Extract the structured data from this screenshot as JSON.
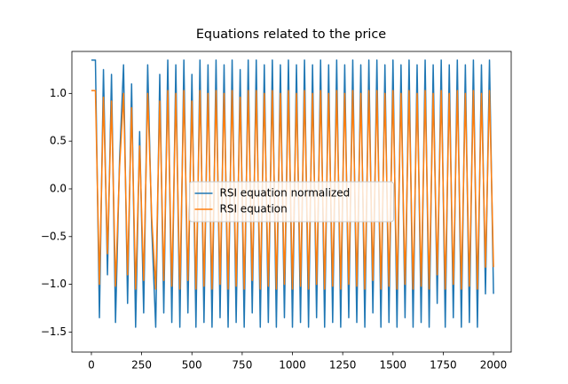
{
  "chart_data": {
    "type": "line",
    "title": "Equations related to the price",
    "x": [
      0,
      20,
      40,
      60,
      80,
      100,
      120,
      140,
      160,
      180,
      200,
      220,
      240,
      260,
      280,
      300,
      320,
      340,
      360,
      380,
      400,
      420,
      440,
      460,
      480,
      500,
      520,
      540,
      560,
      580,
      600,
      620,
      640,
      660,
      680,
      700,
      720,
      740,
      760,
      780,
      800,
      820,
      840,
      860,
      880,
      900,
      920,
      940,
      960,
      980,
      1000,
      1020,
      1040,
      1060,
      1080,
      1100,
      1120,
      1140,
      1160,
      1180,
      1200,
      1220,
      1240,
      1260,
      1280,
      1300,
      1320,
      1340,
      1360,
      1380,
      1400,
      1420,
      1440,
      1460,
      1480,
      1500,
      1520,
      1540,
      1560,
      1580,
      1600,
      1620,
      1640,
      1660,
      1680,
      1700,
      1720,
      1740,
      1760,
      1780,
      1800,
      1820,
      1840,
      1860,
      1880,
      1900,
      1920,
      1940,
      1960,
      1980,
      2000
    ],
    "series": [
      {
        "name": "RSI equation normalized",
        "color": "#1f77b4",
        "values": [
          1.35,
          1.35,
          -1.35,
          1.25,
          -0.9,
          1.2,
          -1.4,
          0.3,
          1.3,
          -1.2,
          1.1,
          -1.45,
          0.6,
          -1.3,
          1.3,
          -0.4,
          -1.45,
          1.2,
          -1.3,
          1.35,
          -1.4,
          1.3,
          -1.45,
          1.35,
          -1.3,
          1.2,
          -1.45,
          1.35,
          -1.4,
          1.3,
          -1.45,
          1.35,
          -1.35,
          1.3,
          -1.45,
          1.35,
          -1.4,
          1.25,
          -1.45,
          1.35,
          -1.3,
          1.35,
          -1.45,
          1.3,
          -1.4,
          1.35,
          -1.45,
          1.3,
          -1.35,
          1.35,
          -1.45,
          1.3,
          -1.4,
          1.35,
          -1.45,
          1.3,
          -1.35,
          1.35,
          -1.45,
          1.3,
          -1.4,
          1.35,
          -1.45,
          1.3,
          -1.35,
          1.35,
          -1.4,
          1.3,
          -1.45,
          1.35,
          -1.3,
          1.35,
          -1.45,
          1.3,
          -1.4,
          1.35,
          -1.45,
          1.3,
          -1.35,
          1.35,
          -1.45,
          1.3,
          -1.4,
          1.35,
          -1.45,
          1.3,
          -1.2,
          1.35,
          -1.45,
          1.3,
          -1.35,
          1.35,
          -1.45,
          1.3,
          -1.4,
          1.35,
          -1.45,
          1.3,
          -1.1,
          1.35,
          -1.1
        ]
      },
      {
        "name": "RSI equation",
        "color": "#ff7f0e",
        "values": [
          1.03,
          1.03,
          -1.0,
          0.96,
          -0.68,
          0.92,
          -1.02,
          0.22,
          1.0,
          -0.9,
          0.85,
          -1.05,
          0.45,
          -0.96,
          1.0,
          -0.3,
          -1.05,
          0.92,
          -0.96,
          1.03,
          -1.02,
          1.0,
          -1.05,
          1.03,
          -0.96,
          0.92,
          -1.05,
          1.03,
          -1.02,
          1.0,
          -1.05,
          1.03,
          -1.0,
          1.0,
          -1.05,
          1.03,
          -1.02,
          0.96,
          -1.05,
          1.03,
          -0.96,
          1.03,
          -1.05,
          1.0,
          -1.02,
          1.03,
          -1.05,
          1.0,
          -1.0,
          1.03,
          -1.05,
          1.0,
          -1.02,
          1.03,
          -1.05,
          1.0,
          -1.0,
          1.03,
          -1.05,
          1.0,
          -1.02,
          1.03,
          -1.05,
          1.0,
          -1.0,
          1.03,
          -1.02,
          1.0,
          -1.05,
          1.03,
          -0.96,
          1.03,
          -1.05,
          1.0,
          -1.02,
          1.03,
          -1.05,
          1.0,
          -1.0,
          1.03,
          -1.05,
          1.0,
          -1.02,
          1.03,
          -1.05,
          1.0,
          -0.9,
          1.03,
          -1.05,
          1.0,
          -1.0,
          1.03,
          -1.05,
          1.0,
          -1.02,
          1.03,
          -1.05,
          1.0,
          -0.82,
          1.03,
          -0.82
        ]
      }
    ],
    "xlim": [
      -97,
      2088
    ],
    "ylim": [
      -1.71,
      1.44
    ],
    "xticks": [
      0,
      250,
      500,
      750,
      1000,
      1250,
      1500,
      1750,
      2000
    ],
    "yticks": [
      {
        "value": -1.5,
        "label": "−1.5"
      },
      {
        "value": -1.0,
        "label": "−1.0"
      },
      {
        "value": -0.5,
        "label": "−0.5"
      },
      {
        "value": 0.0,
        "label": "0.0"
      },
      0.5,
      {
        "value": 1.0,
        "label": "1.0"
      }
    ],
    "legend": "center"
  }
}
